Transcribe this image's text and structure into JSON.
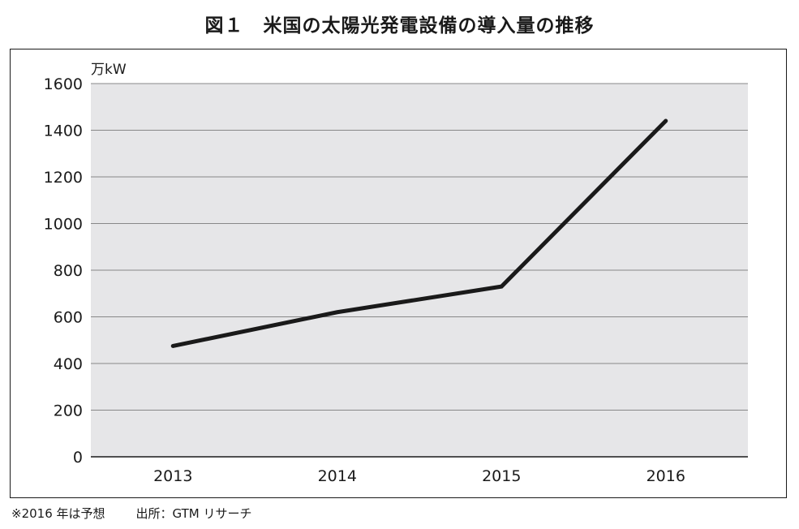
{
  "figure": {
    "title": "図１　米国の太陽光発電設備の導入量の推移"
  },
  "chart_data": {
    "type": "line",
    "title": "図１　米国の太陽光発電設備の導入量の推移",
    "unit_label": "万kW",
    "xlabel": "",
    "ylabel": "",
    "categories": [
      "2013",
      "2014",
      "2015",
      "2016"
    ],
    "series": [
      {
        "values": [
          475,
          620,
          730,
          1440
        ]
      }
    ],
    "yticks": [
      0,
      200,
      400,
      600,
      800,
      1000,
      1200,
      1400,
      1600
    ],
    "ylim": [
      0,
      1600
    ],
    "grid": true,
    "plot_background": "#e6e6e8",
    "line_color": "#1a1a1a",
    "grid_color": "#888888"
  },
  "footer": {
    "note": "※2016 年は予想",
    "source": "出所：GTM リサーチ"
  }
}
